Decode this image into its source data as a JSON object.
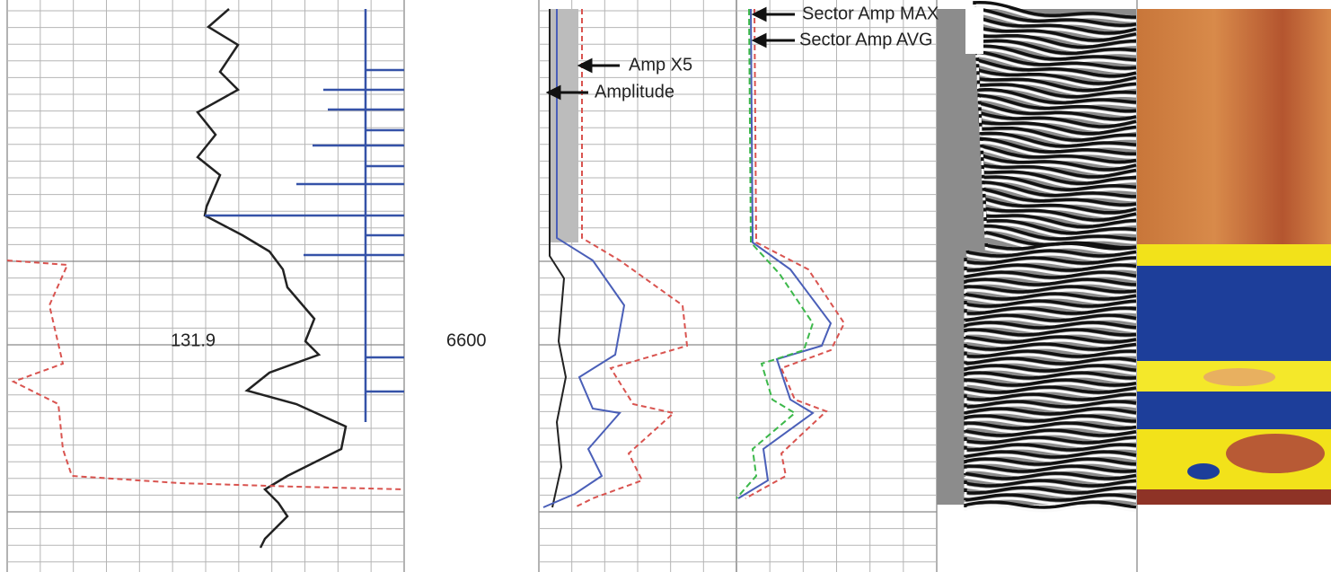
{
  "track_labels": {
    "depth_value": "131.9",
    "depth": "6600"
  },
  "annotations": {
    "amp_x5": "Amp X5",
    "amplitude": "Amplitude",
    "sector_amp_max": "Sector Amp MAX",
    "sector_amp_avg": "Sector Amp AVG"
  }
}
